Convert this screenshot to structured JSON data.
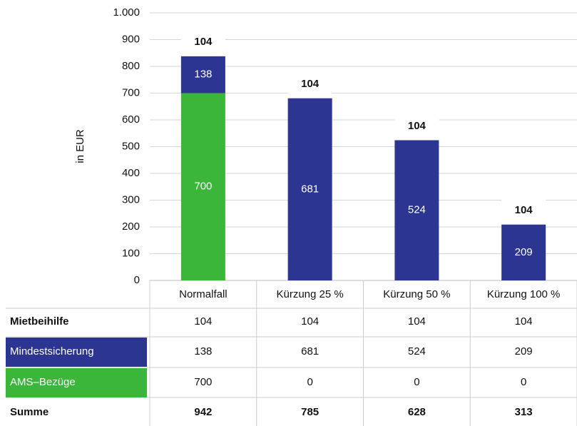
{
  "chart_data": {
    "type": "bar",
    "stacked": true,
    "y_label": "in EUR",
    "categories": [
      "Normalfall",
      "Kürzung 25 %",
      "Kürzung 50 %",
      "Kürzung 100 %"
    ],
    "series": [
      {
        "name": "AMS–Bezüge",
        "color": "#3bb53a",
        "text_color": "#ffffff",
        "values": [
          700,
          0,
          0,
          0
        ]
      },
      {
        "name": "Mindestsicherung",
        "color": "#2c3592",
        "text_color": "#ffffff",
        "values": [
          138,
          681,
          524,
          209
        ]
      },
      {
        "name": "Mietbeihilfe",
        "color": "#ffffff",
        "text_color": "#111111",
        "values": [
          104,
          104,
          104,
          104
        ]
      }
    ],
    "totals": {
      "name": "Summe",
      "values": [
        942,
        785,
        628,
        313
      ]
    },
    "ylim": [
      0,
      1000
    ],
    "yticks": [
      0,
      100,
      200,
      300,
      400,
      500,
      600,
      700,
      800,
      900,
      {
        "value": 1000,
        "label": "1.000"
      }
    ],
    "grid": true
  }
}
